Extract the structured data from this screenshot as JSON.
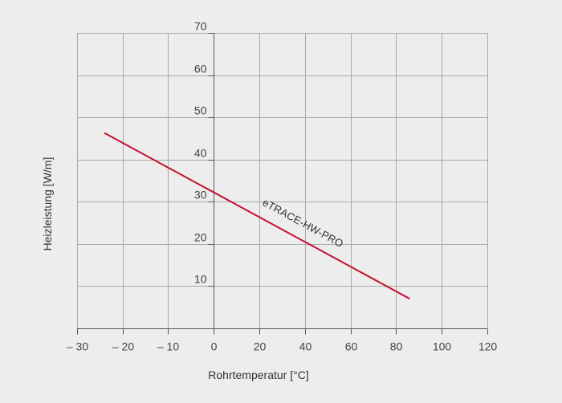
{
  "chart_data": {
    "type": "line",
    "title": "",
    "xlabel": "Rohrtemperatur [°C]",
    "ylabel": "Heizleistung [W/m]",
    "xlim": [
      -30,
      120
    ],
    "ylim": [
      0,
      70
    ],
    "x_ticks": [
      -30,
      -20,
      -10,
      0,
      20,
      40,
      60,
      80,
      100,
      120
    ],
    "x_tick_labels": [
      "– 30",
      "– 20",
      "– 10",
      "0",
      "20",
      "40",
      "60",
      "80",
      "100",
      "120"
    ],
    "y_ticks": [
      10,
      20,
      30,
      40,
      50,
      60,
      70
    ],
    "y_tick_labels": [
      "10",
      "20",
      "30",
      "40",
      "50",
      "60",
      "70"
    ],
    "grid": true,
    "series": [
      {
        "name": "eTRACE-HW-PRO",
        "color": "#c4122f",
        "x": [
          -24,
          86
        ],
        "y": [
          46.3,
          7
        ]
      }
    ]
  }
}
